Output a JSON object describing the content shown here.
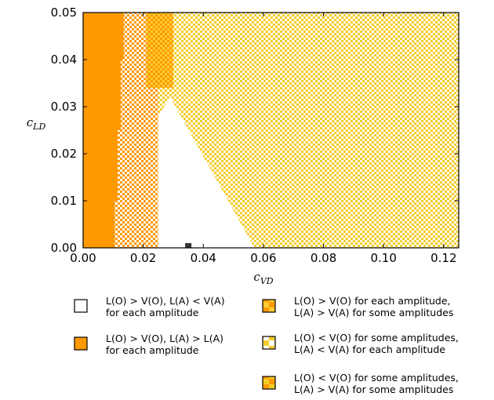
{
  "colors": {
    "orange": "#ff9900",
    "yellow": "#f5cc2a",
    "light_yellow": "#ffe066",
    "white": "#ffffff",
    "marker": "#333333"
  },
  "chart_data": {
    "type": "heatmap",
    "title": "",
    "xlabel": "c",
    "xlabel_sub": "VD",
    "ylabel": "c",
    "ylabel_sub": "LD",
    "xlim": [
      0.0,
      0.125
    ],
    "ylim": [
      0.0,
      0.05
    ],
    "xticks": [
      "0.00",
      "0.02",
      "0.04",
      "0.06",
      "0.08",
      "0.10",
      "0.12"
    ],
    "xtick_values": [
      0.0,
      0.02,
      0.04,
      0.06,
      0.08,
      0.1,
      0.12
    ],
    "yticks": [
      "0.00",
      "0.01",
      "0.02",
      "0.03",
      "0.04",
      "0.05"
    ],
    "ytick_values": [
      0.0,
      0.01,
      0.02,
      0.03,
      0.04,
      0.05
    ],
    "grid": false,
    "regions": [
      {
        "key": "orange_solid",
        "description_ref": 1,
        "x_range": [
          0.0,
          0.0135
        ],
        "y_range": [
          0.0,
          0.05
        ],
        "step_boundary": [
          [
            0.0,
            0.0105
          ],
          [
            0.01,
            0.0115
          ],
          [
            0.025,
            0.0125
          ],
          [
            0.04,
            0.0135
          ]
        ]
      },
      {
        "key": "white_wedge",
        "description_ref": 0,
        "vertices": [
          [
            0.025,
            0.0
          ],
          [
            0.057,
            0.0
          ],
          [
            0.029,
            0.032
          ],
          [
            0.025,
            0.028
          ]
        ]
      },
      {
        "key": "orange_yellow_checker",
        "description_ref": 2,
        "x_range": [
          0.021,
          0.03
        ],
        "y_range": [
          0.034,
          0.05
        ]
      },
      {
        "key": "yellow_white_checker",
        "description_ref": 3,
        "area": "right of wedge"
      },
      {
        "key": "orange_white_checker",
        "description_ref": 4,
        "x_range": [
          0.0105,
          0.025
        ],
        "y_range": [
          0.0,
          0.05
        ]
      }
    ],
    "marker": {
      "x": 0.035,
      "y": 0.0,
      "shape": "square"
    }
  },
  "legend": [
    {
      "pattern": "white",
      "lines": [
        "L(O) > V(O), L(A) < V(A)",
        "for each amplitude"
      ]
    },
    {
      "pattern": "orange",
      "lines": [
        "L(O) > V(O), L(A) > L(A)",
        "for each amplitude"
      ]
    },
    {
      "pattern": "orange-yellow",
      "lines": [
        "L(O) > V(O) for each amplitude,",
        "L(A) > V(A) for some amplitudes"
      ]
    },
    {
      "pattern": "yellow-white",
      "lines": [
        "L(O) < V(O) for some amplitudes,",
        "L(A) < V(A) for each amplitude"
      ]
    },
    {
      "pattern": "orange-yellow-2",
      "lines": [
        "L(O) < V(O) for some amplitudes,",
        "L(A) > V(A) for some amplitudes"
      ]
    }
  ]
}
